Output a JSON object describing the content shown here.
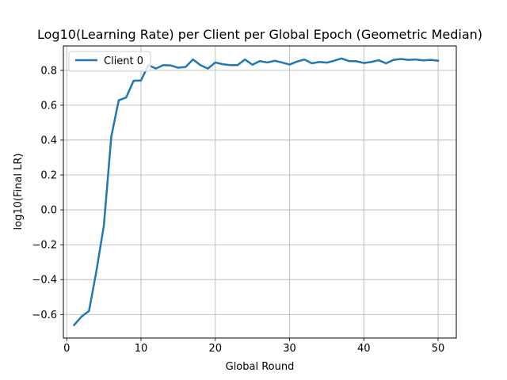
{
  "chart_data": {
    "type": "line",
    "title": "Log10(Learning Rate) per Client per Global Epoch (Geometric Median)",
    "xlabel": "Global Round",
    "ylabel": "log10(Final LR)",
    "xlim": [
      -0.45,
      52.45
    ],
    "ylim": [
      -0.735,
      0.94
    ],
    "xticks": [
      0,
      10,
      20,
      30,
      40,
      50
    ],
    "yticks": [
      -0.6,
      -0.4,
      -0.2,
      0.0,
      0.2,
      0.4,
      0.6,
      0.8
    ],
    "xtick_labels": [
      "0",
      "10",
      "20",
      "30",
      "40",
      "50"
    ],
    "ytick_labels": [
      "−0.6",
      "−0.4",
      "−0.2",
      "0.0",
      "0.2",
      "0.4",
      "0.6",
      "0.8"
    ],
    "grid": true,
    "legend_position": "top-left",
    "series": [
      {
        "name": "Client 0",
        "color": "#1f77b4",
        "x": [
          1,
          2,
          3,
          4,
          5,
          6,
          7,
          8,
          9,
          10,
          11,
          12,
          13,
          14,
          15,
          16,
          17,
          18,
          19,
          20,
          21,
          22,
          23,
          24,
          25,
          26,
          27,
          28,
          29,
          30,
          31,
          32,
          33,
          34,
          35,
          36,
          37,
          38,
          39,
          40,
          41,
          42,
          43,
          44,
          45,
          46,
          47,
          48,
          49,
          50
        ],
        "y": [
          -0.66,
          -0.612,
          -0.58,
          -0.35,
          -0.09,
          0.42,
          0.628,
          0.644,
          0.74,
          0.742,
          0.83,
          0.81,
          0.83,
          0.828,
          0.815,
          0.819,
          0.862,
          0.83,
          0.81,
          0.845,
          0.835,
          0.83,
          0.83,
          0.862,
          0.832,
          0.853,
          0.845,
          0.855,
          0.845,
          0.833,
          0.85,
          0.862,
          0.84,
          0.848,
          0.844,
          0.855,
          0.868,
          0.853,
          0.852,
          0.842,
          0.848,
          0.858,
          0.84,
          0.86,
          0.865,
          0.86,
          0.862,
          0.857,
          0.86,
          0.855
        ]
      }
    ]
  }
}
